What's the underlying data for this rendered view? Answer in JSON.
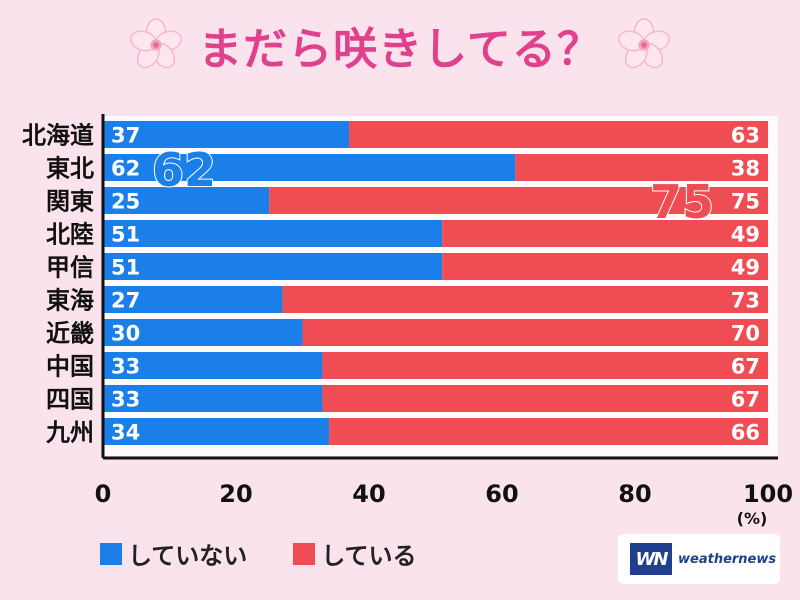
{
  "title": "まだら咲きしてる？",
  "colors": {
    "not_doing": "#1a7fe8",
    "doing": "#ef4c54",
    "title": "#e0418c",
    "background": "#fbe3ee"
  },
  "legend": {
    "not_doing_label": "していない",
    "doing_label": "している"
  },
  "logo": {
    "mark": "WN",
    "text": "weathernews"
  },
  "chart_data": {
    "type": "bar",
    "orientation": "horizontal",
    "stacked": true,
    "categories": [
      "北海道",
      "東北",
      "関東",
      "北陸",
      "甲信",
      "東海",
      "近畿",
      "中国",
      "四国",
      "九州"
    ],
    "series": [
      {
        "name": "していない",
        "values": [
          37,
          62,
          25,
          51,
          51,
          27,
          30,
          33,
          33,
          34
        ]
      },
      {
        "name": "している",
        "values": [
          63,
          38,
          75,
          49,
          49,
          73,
          70,
          67,
          67,
          66
        ]
      }
    ],
    "xlim": [
      0,
      100
    ],
    "xticks": [
      "0",
      "20",
      "40",
      "60",
      "80",
      "100"
    ],
    "xunit": "(%)",
    "callouts": [
      "62",
      "75"
    ],
    "grid": false,
    "legend_position": "bottom-left"
  }
}
